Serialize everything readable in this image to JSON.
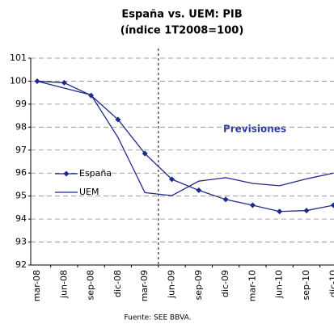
{
  "chart_data": {
    "type": "line",
    "title": "España vs. UEM: PIB",
    "subtitle": "(índice 1T2008=100)",
    "categories": [
      "mar-08",
      "jun-08",
      "sep-08",
      "dic-08",
      "mar-09",
      "jun-09",
      "sep-09",
      "dic-09",
      "mar-10",
      "jun-10",
      "sep-10",
      "dic-10"
    ],
    "series": [
      {
        "name": "España",
        "color": "#1f2a8a",
        "marker": "diamond",
        "values": [
          100.0,
          99.93,
          99.38,
          98.33,
          96.85,
          95.73,
          95.25,
          94.85,
          94.6,
          94.33,
          94.37,
          94.6
        ]
      },
      {
        "name": "UEM",
        "color": "#1f2a8a",
        "values": [
          100.0,
          99.7,
          99.4,
          97.55,
          95.15,
          95.02,
          95.65,
          95.8,
          95.55,
          95.45,
          95.75,
          96.0
        ]
      }
    ],
    "ylim": [
      92,
      101
    ],
    "yticks": [
      92,
      93,
      94,
      95,
      96,
      97,
      98,
      99,
      100,
      101
    ],
    "grid": true,
    "legend_position": "left",
    "annotation": "Previsiones",
    "source": "Fuente: SEE BBVA."
  }
}
